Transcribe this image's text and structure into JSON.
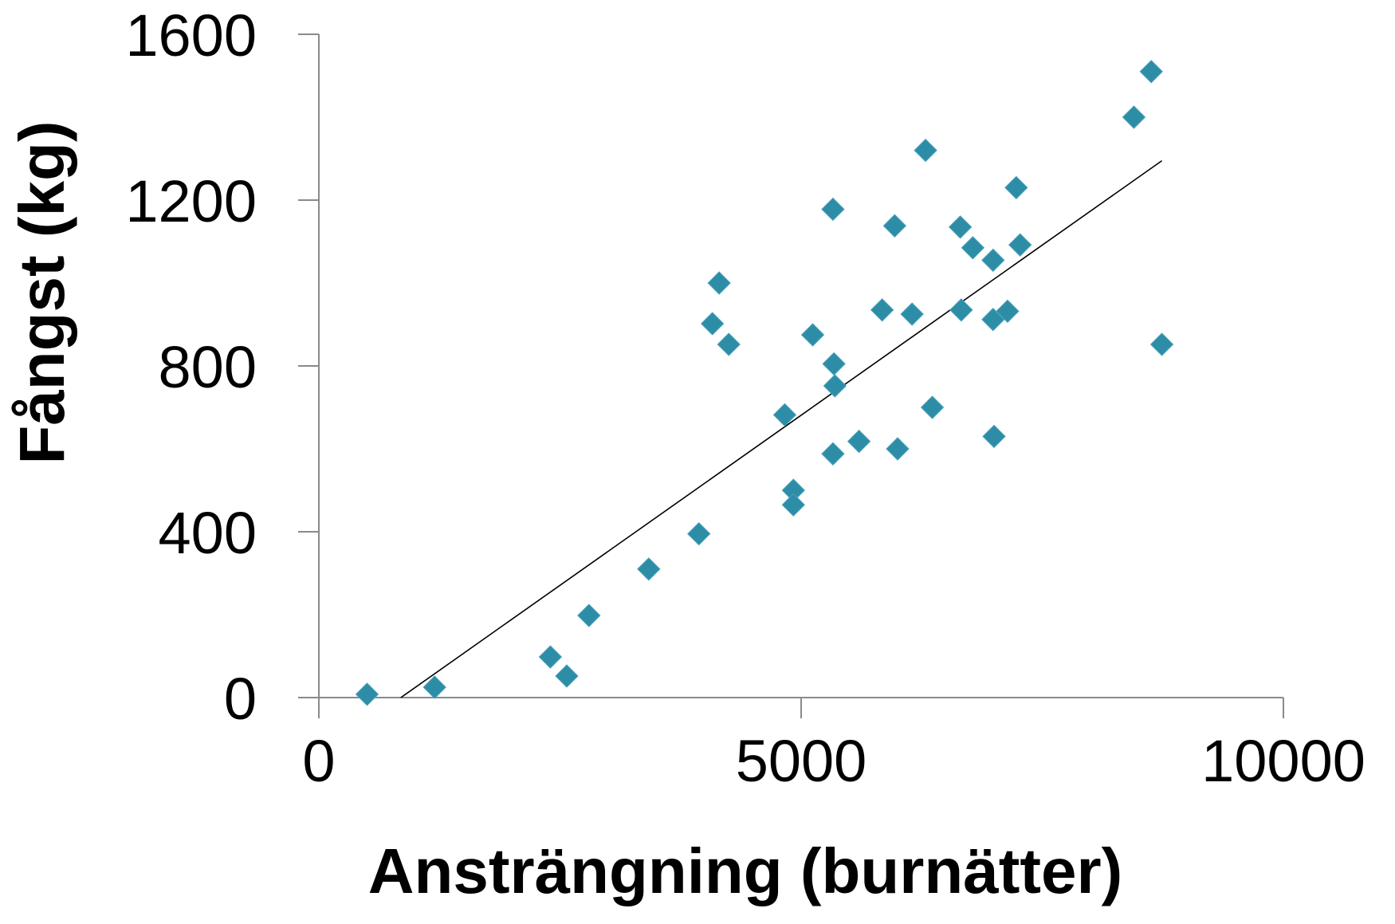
{
  "chart_data": {
    "type": "scatter",
    "xlabel": "Ansträngning (burnätter)",
    "ylabel": "Fångst (kg)",
    "xlim": [
      0,
      10000
    ],
    "ylim": [
      0,
      1600
    ],
    "xticks": [
      "0",
      "5000",
      "10000"
    ],
    "yticks": [
      "0",
      "400",
      "800",
      "1200",
      "1600"
    ],
    "grid": false,
    "legend": "none",
    "marker_color": "#2E8DA6",
    "marker": "diamond",
    "series": [
      {
        "points": [
          [
            500,
            8
          ],
          [
            1200,
            25
          ],
          [
            2400,
            98
          ],
          [
            2570,
            52
          ],
          [
            2800,
            198
          ],
          [
            3420,
            310
          ],
          [
            3940,
            395
          ],
          [
            4080,
            902
          ],
          [
            4150,
            1000
          ],
          [
            4250,
            852
          ],
          [
            4830,
            682
          ],
          [
            4920,
            500
          ],
          [
            4920,
            465
          ],
          [
            5120,
            875
          ],
          [
            5330,
            588
          ],
          [
            5330,
            1178
          ],
          [
            5340,
            805
          ],
          [
            5350,
            752
          ],
          [
            5600,
            618
          ],
          [
            5840,
            935
          ],
          [
            5970,
            1138
          ],
          [
            6000,
            600
          ],
          [
            6150,
            925
          ],
          [
            6290,
            1320
          ],
          [
            6360,
            700
          ],
          [
            6650,
            1135
          ],
          [
            6660,
            935
          ],
          [
            6780,
            1085
          ],
          [
            6990,
            1055
          ],
          [
            6990,
            912
          ],
          [
            7000,
            630
          ],
          [
            7140,
            932
          ],
          [
            7230,
            1230
          ],
          [
            7270,
            1092
          ],
          [
            8450,
            1400
          ],
          [
            8630,
            1510
          ],
          [
            8740,
            852
          ]
        ]
      }
    ],
    "trendline": {
      "x": [
        850,
        8740
      ],
      "y": [
        0,
        1295
      ]
    }
  }
}
